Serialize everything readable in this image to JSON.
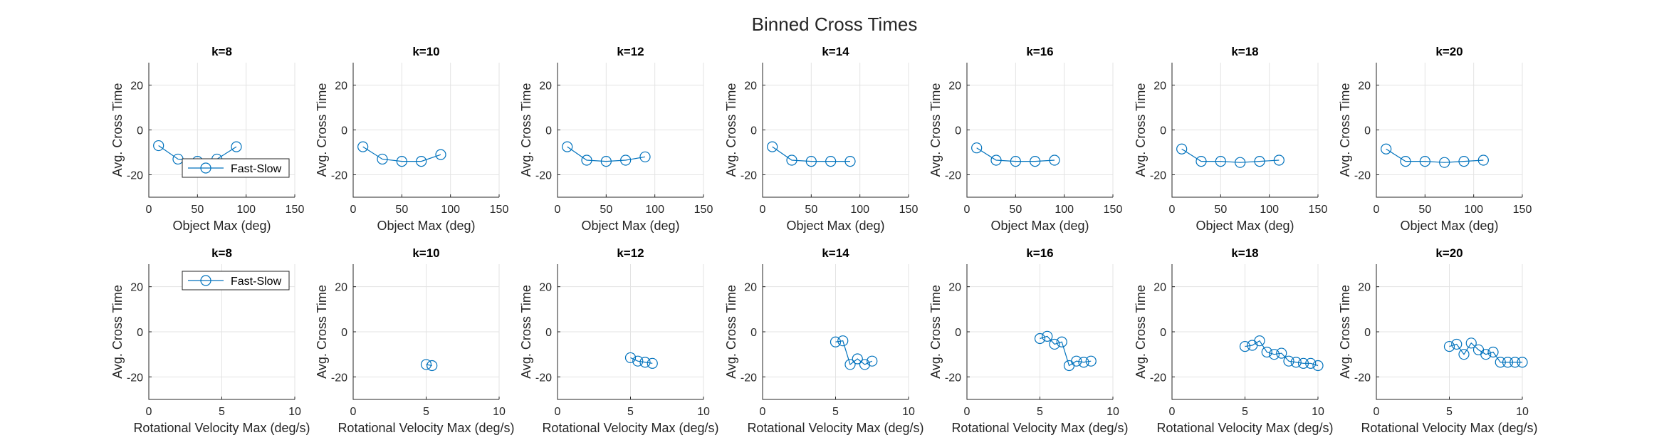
{
  "figure": {
    "title": "Binned Cross Times",
    "colors": {
      "series": "#0072BD",
      "grid": "#e3e3e3",
      "axis": "#262626"
    }
  },
  "chart_data": [
    {
      "type": "line",
      "title": "k=8",
      "xlabel": "Object Max (deg)",
      "ylabel": "Avg. Cross Time",
      "xlim": [
        0,
        150
      ],
      "ylim": [
        -30,
        30
      ],
      "xticks": [
        0,
        50,
        100,
        150
      ],
      "yticks": [
        -20,
        0,
        20
      ],
      "grid": true,
      "legend": {
        "placement": "bottom-right",
        "entries": [
          "Fast-Slow"
        ]
      },
      "series": [
        {
          "name": "Fast-Slow",
          "x": [
            10,
            30,
            50,
            70,
            90
          ],
          "y": [
            -7,
            -13,
            -14,
            -13,
            -7.5
          ]
        }
      ]
    },
    {
      "type": "line",
      "title": "k=10",
      "xlabel": "Object Max (deg)",
      "ylabel": "Avg. Cross Time",
      "xlim": [
        0,
        150
      ],
      "ylim": [
        -30,
        30
      ],
      "xticks": [
        0,
        50,
        100,
        150
      ],
      "yticks": [
        -20,
        0,
        20
      ],
      "grid": true,
      "series": [
        {
          "name": "Fast-Slow",
          "x": [
            10,
            30,
            50,
            70,
            90
          ],
          "y": [
            -7.5,
            -13,
            -14,
            -14,
            -11
          ]
        }
      ]
    },
    {
      "type": "line",
      "title": "k=12",
      "xlabel": "Object Max (deg)",
      "ylabel": "Avg. Cross Time",
      "xlim": [
        0,
        150
      ],
      "ylim": [
        -30,
        30
      ],
      "xticks": [
        0,
        50,
        100,
        150
      ],
      "yticks": [
        -20,
        0,
        20
      ],
      "grid": true,
      "series": [
        {
          "name": "Fast-Slow",
          "x": [
            10,
            30,
            50,
            70,
            90
          ],
          "y": [
            -7.5,
            -13.5,
            -14,
            -13.5,
            -12
          ]
        }
      ]
    },
    {
      "type": "line",
      "title": "k=14",
      "xlabel": "Object Max (deg)",
      "ylabel": "Avg. Cross Time",
      "xlim": [
        0,
        150
      ],
      "ylim": [
        -30,
        30
      ],
      "xticks": [
        0,
        50,
        100,
        150
      ],
      "yticks": [
        -20,
        0,
        20
      ],
      "grid": true,
      "series": [
        {
          "name": "Fast-Slow",
          "x": [
            10,
            30,
            50,
            70,
            90
          ],
          "y": [
            -7.5,
            -13.5,
            -14,
            -14,
            -14
          ]
        }
      ]
    },
    {
      "type": "line",
      "title": "k=16",
      "xlabel": "Object Max (deg)",
      "ylabel": "Avg. Cross Time",
      "xlim": [
        0,
        150
      ],
      "ylim": [
        -30,
        30
      ],
      "xticks": [
        0,
        50,
        100,
        150
      ],
      "yticks": [
        -20,
        0,
        20
      ],
      "grid": true,
      "series": [
        {
          "name": "Fast-Slow",
          "x": [
            10,
            30,
            50,
            70,
            90
          ],
          "y": [
            -8,
            -13.5,
            -14,
            -14,
            -13.5
          ]
        }
      ]
    },
    {
      "type": "line",
      "title": "k=18",
      "xlabel": "Object Max (deg)",
      "ylabel": "Avg. Cross Time",
      "xlim": [
        0,
        150
      ],
      "ylim": [
        -30,
        30
      ],
      "xticks": [
        0,
        50,
        100,
        150
      ],
      "yticks": [
        -20,
        0,
        20
      ],
      "grid": true,
      "series": [
        {
          "name": "Fast-Slow",
          "x": [
            10,
            30,
            50,
            70,
            90,
            110
          ],
          "y": [
            -8.5,
            -14,
            -14,
            -14.5,
            -14,
            -13.5
          ]
        }
      ]
    },
    {
      "type": "line",
      "title": "k=20",
      "xlabel": "Object Max (deg)",
      "ylabel": "Avg. Cross Time",
      "xlim": [
        0,
        150
      ],
      "ylim": [
        -30,
        30
      ],
      "xticks": [
        0,
        50,
        100,
        150
      ],
      "yticks": [
        -20,
        0,
        20
      ],
      "grid": true,
      "series": [
        {
          "name": "Fast-Slow",
          "x": [
            10,
            30,
            50,
            70,
            90,
            110
          ],
          "y": [
            -8.5,
            -14,
            -14,
            -14.5,
            -14,
            -13.5
          ]
        }
      ]
    },
    {
      "type": "line",
      "title": "k=8",
      "xlabel": "Rotational Velocity Max (deg/s)",
      "ylabel": "Avg. Cross Time",
      "xlim": [
        0,
        10
      ],
      "ylim": [
        -30,
        30
      ],
      "xticks": [
        0,
        5,
        10
      ],
      "yticks": [
        -20,
        0,
        20
      ],
      "grid": true,
      "legend": {
        "placement": "top-right",
        "entries": [
          "Fast-Slow"
        ]
      },
      "series": [
        {
          "name": "Fast-Slow",
          "x": [],
          "y": []
        }
      ]
    },
    {
      "type": "line",
      "title": "k=10",
      "xlabel": "Rotational Velocity Max (deg/s)",
      "ylabel": "Avg. Cross Time",
      "xlim": [
        0,
        10
      ],
      "ylim": [
        -30,
        30
      ],
      "xticks": [
        0,
        5,
        10
      ],
      "yticks": [
        -20,
        0,
        20
      ],
      "grid": true,
      "series": [
        {
          "name": "Fast-Slow",
          "x": [
            5.0,
            5.4
          ],
          "y": [
            -14.5,
            -15
          ]
        }
      ]
    },
    {
      "type": "line",
      "title": "k=12",
      "xlabel": "Rotational Velocity Max (deg/s)",
      "ylabel": "Avg. Cross Time",
      "xlim": [
        0,
        10
      ],
      "ylim": [
        -30,
        30
      ],
      "xticks": [
        0,
        5,
        10
      ],
      "yticks": [
        -20,
        0,
        20
      ],
      "grid": true,
      "series": [
        {
          "name": "Fast-Slow",
          "x": [
            5.0,
            5.5,
            6.0,
            6.5
          ],
          "y": [
            -11.5,
            -13,
            -13.5,
            -14
          ]
        }
      ]
    },
    {
      "type": "line",
      "title": "k=14",
      "xlabel": "Rotational Velocity Max (deg/s)",
      "ylabel": "Avg. Cross Time",
      "xlim": [
        0,
        10
      ],
      "ylim": [
        -30,
        30
      ],
      "xticks": [
        0,
        5,
        10
      ],
      "yticks": [
        -20,
        0,
        20
      ],
      "grid": true,
      "series": [
        {
          "name": "Fast-Slow",
          "x": [
            5.0,
            5.5,
            6.0,
            6.5,
            7.0,
            7.5
          ],
          "y": [
            -4.5,
            -4,
            -14.5,
            -12,
            -14.5,
            -13
          ]
        }
      ]
    },
    {
      "type": "line",
      "title": "k=16",
      "xlabel": "Rotational Velocity Max (deg/s)",
      "ylabel": "Avg. Cross Time",
      "xlim": [
        0,
        10
      ],
      "ylim": [
        -30,
        30
      ],
      "xticks": [
        0,
        5,
        10
      ],
      "yticks": [
        -20,
        0,
        20
      ],
      "grid": true,
      "series": [
        {
          "name": "Fast-Slow",
          "x": [
            5.0,
            5.5,
            6.0,
            6.5,
            7.0,
            7.5,
            8.0,
            8.5
          ],
          "y": [
            -3,
            -2,
            -5.5,
            -4.5,
            -15,
            -13,
            -13.5,
            -13
          ]
        }
      ]
    },
    {
      "type": "line",
      "title": "k=18",
      "xlabel": "Rotational Velocity Max (deg/s)",
      "ylabel": "Avg. Cross Time",
      "xlim": [
        0,
        10
      ],
      "ylim": [
        -30,
        30
      ],
      "xticks": [
        0,
        5,
        10
      ],
      "yticks": [
        -20,
        0,
        20
      ],
      "grid": true,
      "series": [
        {
          "name": "Fast-Slow",
          "x": [
            5.0,
            5.5,
            6.0,
            6.5,
            7.0,
            7.5,
            8.0,
            8.5,
            9.0,
            9.5,
            10.0
          ],
          "y": [
            -6.5,
            -6,
            -4,
            -9,
            -10,
            -9.5,
            -13,
            -13.5,
            -14,
            -14,
            -15
          ]
        }
      ]
    },
    {
      "type": "line",
      "title": "k=20",
      "xlabel": "Rotational Velocity Max (deg/s)",
      "ylabel": "Avg. Cross Time",
      "xlim": [
        0,
        10
      ],
      "ylim": [
        -30,
        30
      ],
      "xticks": [
        0,
        5,
        10
      ],
      "yticks": [
        -20,
        0,
        20
      ],
      "grid": true,
      "series": [
        {
          "name": "Fast-Slow",
          "x": [
            5.0,
            5.5,
            6.0,
            6.5,
            7.0,
            7.5,
            8.0,
            8.5,
            9.0,
            9.5,
            10.0
          ],
          "y": [
            -6.5,
            -5.5,
            -10,
            -5,
            -8,
            -10,
            -9,
            -13.5,
            -13.5,
            -13.5,
            -13.5
          ]
        }
      ]
    }
  ]
}
